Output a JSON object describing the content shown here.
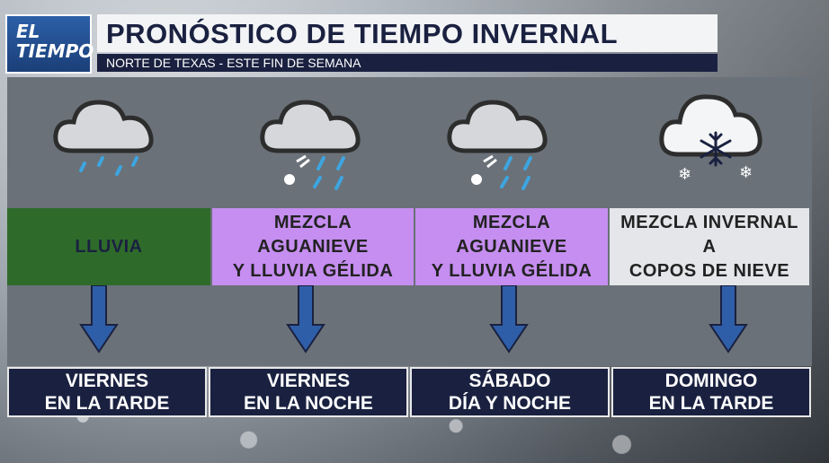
{
  "logo": {
    "line1": "EL",
    "line2": "TIEMPO"
  },
  "header": {
    "title": "PRONÓSTICO DE TIEMPO INVERNAL",
    "subtitle": "NORTE DE TEXAS - ESTE FIN DE SEMANA"
  },
  "colors": {
    "rain": "#2e6b2a",
    "mix": "#c58ef0",
    "snow": "#e4e6e9",
    "navy": "#1a2140",
    "arrow": "#2f5ea8"
  },
  "columns": [
    {
      "icon": "cloud-rain-icon",
      "condition": [
        "LLUVIA"
      ],
      "day": [
        "VIERNES",
        "EN LA TARDE"
      ]
    },
    {
      "icon": "cloud-sleet-icon",
      "condition": [
        "MEZCLA",
        "AGUANIEVE",
        "Y LLUVIA GÉLIDA"
      ],
      "day": [
        "VIERNES",
        "EN LA NOCHE"
      ]
    },
    {
      "icon": "cloud-sleet-icon",
      "condition": [
        "MEZCLA",
        "AGUANIEVE",
        "Y LLUVIA GÉLIDA"
      ],
      "day": [
        "SÁBADO",
        "DÍA Y NOCHE"
      ]
    },
    {
      "icon": "cloud-snow-icon",
      "condition": [
        "MEZCLA INVERNAL",
        "A",
        "COPOS DE NIEVE"
      ],
      "day": [
        "DOMINGO",
        "EN LA TARDE"
      ]
    }
  ]
}
